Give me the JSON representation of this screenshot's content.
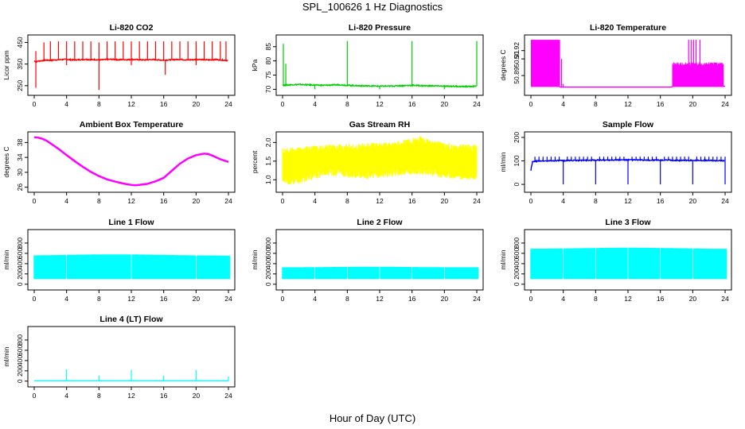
{
  "figure": {
    "title": "SPL_100626  1 Hz Diagnostics",
    "xlabel": "Hour of Day (UTC)"
  },
  "chart_data": [
    {
      "type": "line",
      "title": "Li-820 CO2",
      "ylabel": "Licor ppm",
      "color": "#ff0000",
      "xlim": [
        0,
        24
      ],
      "ylim": [
        220,
        470
      ],
      "xticks": [
        "0",
        "4",
        "8",
        "12",
        "16",
        "20",
        "24"
      ],
      "yticks": [
        250,
        350,
        450
      ],
      "series": [
        {
          "x": [
            0,
            0.2,
            0.5,
            1,
            1.5,
            2,
            2.5,
            3,
            3.5,
            4,
            4.5,
            5,
            5.5,
            6,
            6.5,
            7,
            7.5,
            8,
            8.5,
            9,
            9.5,
            10,
            10.5,
            11,
            11.5,
            12,
            12.5,
            13,
            13.5,
            14,
            14.5,
            15,
            15.5,
            16,
            16.5,
            17,
            17.5,
            18,
            18.5,
            19,
            19.5,
            20,
            20.5,
            21,
            21.5,
            22,
            22.5,
            23,
            23.5,
            24
          ],
          "y": [
            365,
            360,
            364,
            366,
            368,
            367,
            369,
            370,
            371,
            372,
            370,
            369,
            370,
            371,
            372,
            370,
            371,
            369,
            370,
            371,
            372,
            371,
            370,
            371,
            370,
            372,
            371,
            370,
            369,
            370,
            371,
            370,
            369,
            368,
            369,
            370,
            371,
            372,
            370,
            369,
            370,
            371,
            372,
            370,
            369,
            370,
            371,
            369,
            368,
            366
          ]
        }
      ],
      "spikes_up": [
        [
          0.2,
          410
        ],
        [
          1.2,
          450
        ],
        [
          2.0,
          455
        ],
        [
          3.0,
          455
        ],
        [
          4.0,
          455
        ],
        [
          5.0,
          455
        ],
        [
          6.0,
          455
        ],
        [
          7.0,
          455
        ],
        [
          8.0,
          450
        ],
        [
          9.0,
          455
        ],
        [
          10.0,
          455
        ],
        [
          11.0,
          455
        ],
        [
          12.0,
          455
        ],
        [
          13.0,
          455
        ],
        [
          14.0,
          455
        ],
        [
          15.0,
          455
        ],
        [
          16.0,
          455
        ],
        [
          17.0,
          455
        ],
        [
          18.0,
          455
        ],
        [
          19.0,
          455
        ],
        [
          20.0,
          455
        ],
        [
          21.0,
          455
        ],
        [
          22.0,
          455
        ],
        [
          23.0,
          455
        ],
        [
          23.7,
          455
        ]
      ],
      "spikes_down": [
        [
          0.2,
          240
        ],
        [
          8.0,
          230
        ],
        [
          16.2,
          300
        ],
        [
          4.0,
          345
        ],
        [
          12.0,
          345
        ],
        [
          20.0,
          345
        ]
      ]
    },
    {
      "type": "line",
      "title": "Li-820 Pressure",
      "ylabel": "kPa",
      "color": "#00cd00",
      "xlim": [
        0,
        24
      ],
      "ylim": [
        69,
        88
      ],
      "xticks": [
        "0",
        "4",
        "8",
        "12",
        "16",
        "20",
        "24"
      ],
      "yticks": [
        70,
        75,
        80,
        85
      ],
      "series": [
        {
          "x": [
            0,
            0.2,
            0.5,
            1,
            2,
            3,
            4,
            5,
            6,
            7,
            8,
            9,
            10,
            11,
            12,
            13,
            14,
            15,
            16,
            17,
            18,
            19,
            20,
            21,
            22,
            23,
            24
          ],
          "y": [
            71.5,
            71.4,
            71.5,
            71.6,
            71.7,
            71.6,
            71.5,
            71.4,
            71.5,
            71.6,
            71.4,
            71.3,
            71.2,
            71.2,
            71.1,
            71.1,
            71.2,
            71.3,
            71.4,
            71.3,
            71.2,
            71.2,
            71.1,
            71.1,
            71.0,
            71.0,
            71.1
          ]
        }
      ],
      "spikes_up": [
        [
          0.1,
          86
        ],
        [
          0.4,
          79
        ],
        [
          8.0,
          87
        ],
        [
          16.0,
          87
        ],
        [
          24.0,
          87
        ]
      ],
      "spikes_down": [
        [
          4.0,
          70
        ],
        [
          12.0,
          70
        ],
        [
          20.0,
          70
        ]
      ]
    },
    {
      "type": "line",
      "title": "Li-820 Temperature",
      "ylabel": "degrees C",
      "color": "#ff00ff",
      "xlim": [
        0,
        24
      ],
      "ylim": [
        50.87,
        50.935
      ],
      "xticks": [
        "0",
        "4",
        "8",
        "12",
        "16",
        "20",
        "24"
      ],
      "yticks": [
        50.89,
        50.91,
        50.92
      ],
      "ytick_labels": [
        "50.89",
        "50.91",
        "50.92"
      ],
      "series": [
        {
          "x": [
            0,
            3.5,
            3.6,
            6,
            10,
            14,
            17.4,
            17.5,
            24
          ],
          "y": [
            50.877,
            50.877,
            50.876,
            50.876,
            50.876,
            50.876,
            50.876,
            50.877,
            50.877
          ]
        }
      ],
      "band": {
        "x0": 0,
        "x1": 3.6,
        "y0": 50.877,
        "y1": 50.933
      },
      "band2": {
        "x0": 17.5,
        "x1": 23.8,
        "y0": 50.877,
        "y1": 50.906
      },
      "spikes_up": [
        [
          3.8,
          50.91
        ],
        [
          4.0,
          50.88
        ],
        [
          19.5,
          50.933
        ],
        [
          19.8,
          50.933
        ],
        [
          20.1,
          50.933
        ],
        [
          20.4,
          50.933
        ],
        [
          20.9,
          50.933
        ]
      ]
    },
    {
      "type": "line",
      "title": "Ambient Box Temperature",
      "ylabel": "degrees C",
      "color": "#ff00ff",
      "xlim": [
        0,
        24
      ],
      "ylim": [
        25.5,
        40
      ],
      "xticks": [
        "0",
        "4",
        "8",
        "12",
        "16",
        "20",
        "24"
      ],
      "yticks": [
        26,
        30,
        34,
        38
      ],
      "series": [
        {
          "x": [
            0,
            0.5,
            1,
            1.5,
            2,
            3,
            4,
            5,
            6,
            7,
            8,
            9,
            10,
            11,
            12,
            12.5,
            13,
            14,
            15,
            16,
            17,
            18,
            19,
            20,
            21,
            21.5,
            22,
            23,
            24
          ],
          "y": [
            39.4,
            39.3,
            39.0,
            38.5,
            37.8,
            36.3,
            34.6,
            33.0,
            31.5,
            30.1,
            29.0,
            28.1,
            27.5,
            27.0,
            26.6,
            26.5,
            26.6,
            26.9,
            27.6,
            28.5,
            30.4,
            32.3,
            33.7,
            34.6,
            35.0,
            34.9,
            34.5,
            33.5,
            32.8
          ]
        }
      ]
    },
    {
      "type": "line",
      "title": "Gas Stream RH",
      "ylabel": "percent",
      "color": "#ffff00",
      "xlim": [
        0,
        24
      ],
      "ylim": [
        0.75,
        2.2
      ],
      "xticks": [
        "0",
        "4",
        "8",
        "12",
        "16",
        "20",
        "24"
      ],
      "yticks": [
        1.0,
        1.5,
        2.0
      ],
      "ytick_labels": [
        "1.0",
        "1.5",
        "2.0"
      ],
      "series": [
        {
          "x": [
            0,
            2,
            4,
            6,
            8,
            10,
            12,
            14,
            16,
            17,
            18,
            20,
            22,
            24
          ],
          "y": [
            1.85,
            1.88,
            1.92,
            1.95,
            1.97,
            1.98,
            2.0,
            2.02,
            2.12,
            2.18,
            2.1,
            2.0,
            1.95,
            1.95
          ]
        },
        {
          "x": [
            0,
            2,
            4,
            6,
            8,
            10,
            12,
            14,
            16,
            18,
            20,
            22,
            24
          ],
          "y": [
            0.85,
            0.9,
            1.0,
            1.1,
            1.05,
            1.0,
            1.05,
            1.1,
            1.15,
            1.1,
            1.05,
            1.0,
            0.98
          ]
        }
      ],
      "band_series": true
    },
    {
      "type": "line",
      "title": "Sample Flow",
      "ylabel": "ml/min",
      "color": "#0000ff",
      "xlim": [
        0,
        24
      ],
      "ylim": [
        -20,
        210
      ],
      "xticks": [
        "0",
        "4",
        "8",
        "12",
        "16",
        "20",
        "24"
      ],
      "yticks": [
        0,
        100,
        200
      ],
      "series": [
        {
          "x": [
            0,
            0.2,
            0.5,
            1,
            2,
            3,
            4,
            5,
            6,
            7,
            8,
            9,
            10,
            11,
            12,
            13,
            14,
            15,
            16,
            17,
            18,
            19,
            20,
            21,
            22,
            23,
            24
          ],
          "y": [
            60,
            95,
            98,
            100,
            100,
            101,
            101,
            102,
            102,
            103,
            103,
            103,
            104,
            104,
            104,
            104,
            103,
            103,
            103,
            103,
            102,
            102,
            102,
            102,
            102,
            101,
            101
          ]
        }
      ],
      "spikes_up": [
        [
          0.5,
          118
        ],
        [
          1.0,
          118
        ],
        [
          1.5,
          118
        ],
        [
          2.0,
          118
        ],
        [
          2.5,
          118
        ],
        [
          3.0,
          118
        ],
        [
          3.5,
          118
        ],
        [
          4.5,
          118
        ],
        [
          5,
          118
        ],
        [
          5.5,
          118
        ],
        [
          6,
          118
        ],
        [
          6.5,
          118
        ],
        [
          7,
          118
        ],
        [
          7.5,
          118
        ],
        [
          8.5,
          118
        ],
        [
          9,
          118
        ],
        [
          9.5,
          118
        ],
        [
          10,
          118
        ],
        [
          10.5,
          118
        ],
        [
          11,
          118
        ],
        [
          11.5,
          118
        ],
        [
          12.5,
          118
        ],
        [
          13,
          118
        ],
        [
          13.5,
          118
        ],
        [
          14,
          118
        ],
        [
          14.5,
          118
        ],
        [
          15,
          118
        ],
        [
          15.5,
          118
        ],
        [
          16.5,
          118
        ],
        [
          17,
          118
        ],
        [
          17.5,
          118
        ],
        [
          18,
          118
        ],
        [
          18.5,
          118
        ],
        [
          19,
          118
        ],
        [
          19.5,
          118
        ],
        [
          20.5,
          118
        ],
        [
          21,
          118
        ],
        [
          21.5,
          118
        ],
        [
          22,
          118
        ],
        [
          22.5,
          118
        ],
        [
          23,
          118
        ],
        [
          23.5,
          118
        ],
        [
          24,
          118
        ]
      ],
      "spikes_down": [
        [
          4.0,
          0
        ],
        [
          8.0,
          0
        ],
        [
          12.0,
          0
        ],
        [
          16.0,
          0
        ],
        [
          20.0,
          0
        ],
        [
          24.0,
          0
        ]
      ]
    },
    {
      "type": "area",
      "title": "Line 1 Flow",
      "ylabel": "ml/min",
      "color": "#00ffff",
      "xlim": [
        0,
        24
      ],
      "ylim": [
        -50,
        1000
      ],
      "xticks": [
        "0",
        "4",
        "8",
        "12",
        "16",
        "20",
        "24"
      ],
      "yticks": [
        0,
        200,
        400,
        600,
        800
      ],
      "series": [
        {
          "x": [
            0,
            2,
            4,
            6,
            8,
            10,
            12,
            14,
            16,
            18,
            20,
            22,
            24
          ],
          "y": [
            560,
            565,
            570,
            575,
            580,
            580,
            580,
            575,
            570,
            565,
            560,
            560,
            555
          ]
        }
      ],
      "floor": 100,
      "gaps": [
        4,
        12,
        20
      ],
      "end": 24.2
    },
    {
      "type": "area",
      "title": "Line 2 Flow",
      "ylabel": "ml/min",
      "color": "#00ffff",
      "xlim": [
        0,
        24
      ],
      "ylim": [
        -50,
        1000
      ],
      "xticks": [
        "0",
        "4",
        "8",
        "12",
        "16",
        "20",
        "24"
      ],
      "yticks": [
        0,
        200,
        400,
        600,
        800
      ],
      "series": [
        {
          "x": [
            0,
            2,
            4,
            6,
            8,
            10,
            12,
            14,
            16,
            18,
            20,
            22,
            24
          ],
          "y": [
            330,
            330,
            332,
            335,
            338,
            340,
            340,
            338,
            335,
            332,
            330,
            330,
            330
          ]
        }
      ],
      "floor": 100,
      "gaps": [
        4,
        8,
        12,
        16,
        20
      ],
      "end": 24.2
    },
    {
      "type": "area",
      "title": "Line 3 Flow",
      "ylabel": "ml/min",
      "color": "#00ffff",
      "xlim": [
        0,
        24
      ],
      "ylim": [
        -50,
        1000
      ],
      "xticks": [
        "0",
        "4",
        "8",
        "12",
        "16",
        "20",
        "24"
      ],
      "yticks": [
        0,
        200,
        400,
        600,
        800
      ],
      "series": [
        {
          "x": [
            0,
            2,
            4,
            6,
            8,
            10,
            12,
            14,
            16,
            18,
            20,
            22,
            24
          ],
          "y": [
            690,
            692,
            695,
            700,
            705,
            708,
            710,
            708,
            705,
            700,
            695,
            690,
            690
          ]
        }
      ],
      "floor": 100,
      "gaps": [
        4,
        8,
        12,
        16,
        20
      ],
      "end": 24.2
    },
    {
      "type": "line",
      "title": "Line 4 (LT) Flow",
      "ylabel": "ml/min",
      "color": "#00ffff",
      "xlim": [
        0,
        24
      ],
      "ylim": [
        -50,
        1000
      ],
      "xticks": [
        "0",
        "4",
        "8",
        "12",
        "16",
        "20",
        "24"
      ],
      "yticks": [
        0,
        200,
        400,
        600,
        800
      ],
      "series": [
        {
          "x": [
            0,
            2,
            4,
            6,
            8,
            10,
            12,
            14,
            16,
            18,
            20,
            22,
            24
          ],
          "y": [
            5,
            5,
            5,
            5,
            5,
            5,
            5,
            5,
            5,
            5,
            5,
            5,
            5
          ]
        }
      ],
      "spikes_up": [
        [
          4.0,
          230
        ],
        [
          8.0,
          110
        ],
        [
          12.0,
          220
        ],
        [
          16.0,
          110
        ],
        [
          20.0,
          220
        ],
        [
          24.0,
          90
        ]
      ]
    }
  ]
}
